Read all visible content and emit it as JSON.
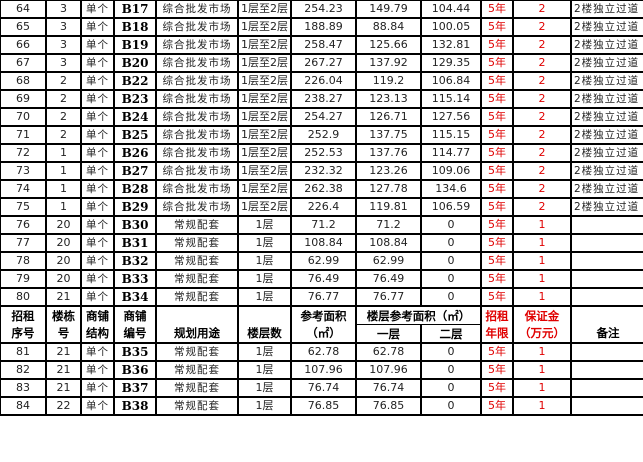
{
  "header": {
    "serial": [
      "招租",
      "序号"
    ],
    "building": [
      "楼栋",
      "号"
    ],
    "structure": [
      "商铺",
      "结构"
    ],
    "shop_no": [
      "商铺",
      "编号"
    ],
    "usage": "规划用途",
    "floors": "楼层数",
    "ref_area": [
      "参考面积",
      "（㎡）"
    ],
    "floor_area": "楼层参考面积（㎡）",
    "floor1": "一层",
    "floor2": "二层",
    "term": [
      "招租",
      "年限"
    ],
    "deposit": [
      "保证金",
      "（万元）"
    ],
    "remark": "备注"
  },
  "rows_before": [
    {
      "serial": "64",
      "building": "3",
      "structure": "单个",
      "shop_no": "B17",
      "usage": "综合批发市场",
      "floors": "1层至2层",
      "ref_area": "254.23",
      "floor1": "149.79",
      "floor2": "104.44",
      "term": "5年",
      "deposit": "2",
      "remark": "2楼独立过道"
    },
    {
      "serial": "65",
      "building": "3",
      "structure": "单个",
      "shop_no": "B18",
      "usage": "综合批发市场",
      "floors": "1层至2层",
      "ref_area": "188.89",
      "floor1": "88.84",
      "floor2": "100.05",
      "term": "5年",
      "deposit": "2",
      "remark": "2楼独立过道"
    },
    {
      "serial": "66",
      "building": "3",
      "structure": "单个",
      "shop_no": "B19",
      "usage": "综合批发市场",
      "floors": "1层至2层",
      "ref_area": "258.47",
      "floor1": "125.66",
      "floor2": "132.81",
      "term": "5年",
      "deposit": "2",
      "remark": "2楼独立过道"
    },
    {
      "serial": "67",
      "building": "3",
      "structure": "单个",
      "shop_no": "B20",
      "usage": "综合批发市场",
      "floors": "1层至2层",
      "ref_area": "267.27",
      "floor1": "137.92",
      "floor2": "129.35",
      "term": "5年",
      "deposit": "2",
      "remark": "2楼独立过道"
    },
    {
      "serial": "68",
      "building": "2",
      "structure": "单个",
      "shop_no": "B22",
      "usage": "综合批发市场",
      "floors": "1层至2层",
      "ref_area": "226.04",
      "floor1": "119.2",
      "floor2": "106.84",
      "term": "5年",
      "deposit": "2",
      "remark": "2楼独立过道"
    },
    {
      "serial": "69",
      "building": "2",
      "structure": "单个",
      "shop_no": "B23",
      "usage": "综合批发市场",
      "floors": "1层至2层",
      "ref_area": "238.27",
      "floor1": "123.13",
      "floor2": "115.14",
      "term": "5年",
      "deposit": "2",
      "remark": "2楼独立过道"
    },
    {
      "serial": "70",
      "building": "2",
      "structure": "单个",
      "shop_no": "B24",
      "usage": "综合批发市场",
      "floors": "1层至2层",
      "ref_area": "254.27",
      "floor1": "126.71",
      "floor2": "127.56",
      "term": "5年",
      "deposit": "2",
      "remark": "2楼独立过道"
    },
    {
      "serial": "71",
      "building": "2",
      "structure": "单个",
      "shop_no": "B25",
      "usage": "综合批发市场",
      "floors": "1层至2层",
      "ref_area": "252.9",
      "floor1": "137.75",
      "floor2": "115.15",
      "term": "5年",
      "deposit": "2",
      "remark": "2楼独立过道"
    },
    {
      "serial": "72",
      "building": "1",
      "structure": "单个",
      "shop_no": "B26",
      "usage": "综合批发市场",
      "floors": "1层至2层",
      "ref_area": "252.53",
      "floor1": "137.76",
      "floor2": "114.77",
      "term": "5年",
      "deposit": "2",
      "remark": "2楼独立过道"
    },
    {
      "serial": "73",
      "building": "1",
      "structure": "单个",
      "shop_no": "B27",
      "usage": "综合批发市场",
      "floors": "1层至2层",
      "ref_area": "232.32",
      "floor1": "123.26",
      "floor2": "109.06",
      "term": "5年",
      "deposit": "2",
      "remark": "2楼独立过道"
    },
    {
      "serial": "74",
      "building": "1",
      "structure": "单个",
      "shop_no": "B28",
      "usage": "综合批发市场",
      "floors": "1层至2层",
      "ref_area": "262.38",
      "floor1": "127.78",
      "floor2": "134.6",
      "term": "5年",
      "deposit": "2",
      "remark": "2楼独立过道"
    },
    {
      "serial": "75",
      "building": "1",
      "structure": "单个",
      "shop_no": "B29",
      "usage": "综合批发市场",
      "floors": "1层至2层",
      "ref_area": "226.4",
      "floor1": "119.81",
      "floor2": "106.59",
      "term": "5年",
      "deposit": "2",
      "remark": "2楼独立过道"
    },
    {
      "serial": "76",
      "building": "20",
      "structure": "单个",
      "shop_no": "B30",
      "usage": "常规配套",
      "floors": "1层",
      "ref_area": "71.2",
      "floor1": "71.2",
      "floor2": "0",
      "term": "5年",
      "deposit": "1",
      "remark": ""
    },
    {
      "serial": "77",
      "building": "20",
      "structure": "单个",
      "shop_no": "B31",
      "usage": "常规配套",
      "floors": "1层",
      "ref_area": "108.84",
      "floor1": "108.84",
      "floor2": "0",
      "term": "5年",
      "deposit": "1",
      "remark": ""
    },
    {
      "serial": "78",
      "building": "20",
      "structure": "单个",
      "shop_no": "B32",
      "usage": "常规配套",
      "floors": "1层",
      "ref_area": "62.99",
      "floor1": "62.99",
      "floor2": "0",
      "term": "5年",
      "deposit": "1",
      "remark": ""
    },
    {
      "serial": "79",
      "building": "20",
      "structure": "单个",
      "shop_no": "B33",
      "usage": "常规配套",
      "floors": "1层",
      "ref_area": "76.49",
      "floor1": "76.49",
      "floor2": "0",
      "term": "5年",
      "deposit": "1",
      "remark": ""
    },
    {
      "serial": "80",
      "building": "21",
      "structure": "单个",
      "shop_no": "B34",
      "usage": "常规配套",
      "floors": "1层",
      "ref_area": "76.77",
      "floor1": "76.77",
      "floor2": "0",
      "term": "5年",
      "deposit": "1",
      "remark": ""
    }
  ],
  "rows_after": [
    {
      "serial": "81",
      "building": "21",
      "structure": "单个",
      "shop_no": "B35",
      "usage": "常规配套",
      "floors": "1层",
      "ref_area": "62.78",
      "floor1": "62.78",
      "floor2": "0",
      "term": "5年",
      "deposit": "1",
      "remark": ""
    },
    {
      "serial": "82",
      "building": "21",
      "structure": "单个",
      "shop_no": "B36",
      "usage": "常规配套",
      "floors": "1层",
      "ref_area": "107.96",
      "floor1": "107.96",
      "floor2": "0",
      "term": "5年",
      "deposit": "1",
      "remark": ""
    },
    {
      "serial": "83",
      "building": "21",
      "structure": "单个",
      "shop_no": "B37",
      "usage": "常规配套",
      "floors": "1层",
      "ref_area": "76.74",
      "floor1": "76.74",
      "floor2": "0",
      "term": "5年",
      "deposit": "1",
      "remark": ""
    },
    {
      "serial": "84",
      "building": "22",
      "structure": "单个",
      "shop_no": "B38",
      "usage": "常规配套",
      "floors": "1层",
      "ref_area": "76.85",
      "floor1": "76.85",
      "floor2": "0",
      "term": "5年",
      "deposit": "1",
      "remark": ""
    }
  ],
  "colors": {
    "text": "#222222",
    "accent_red": "#e00000",
    "border": "#000000"
  }
}
